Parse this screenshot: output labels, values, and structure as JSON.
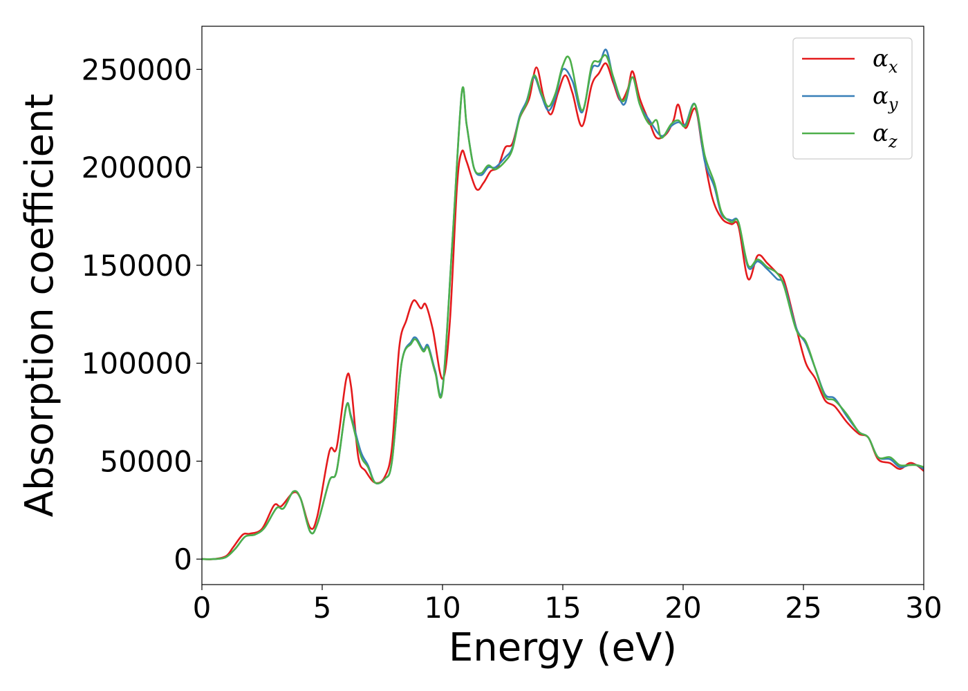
{
  "chart_data": {
    "type": "line",
    "xlabel": "Energy (eV)",
    "ylabel": "Absorption coefficient",
    "xlim": [
      0,
      30
    ],
    "ylim": [
      -13000,
      272000
    ],
    "x_ticks": [
      0,
      5,
      10,
      15,
      20,
      25,
      30
    ],
    "y_ticks": [
      0,
      50000,
      100000,
      150000,
      200000,
      250000
    ],
    "grid": false,
    "legend_position": "top-right",
    "series": [
      {
        "name": "α",
        "subscript": "x",
        "color": "#e41a1c",
        "points": [
          [
            0,
            0
          ],
          [
            0.5,
            0
          ],
          [
            1,
            1500
          ],
          [
            1.3,
            6000
          ],
          [
            1.7,
            12500
          ],
          [
            2,
            13000
          ],
          [
            2.5,
            15500
          ],
          [
            3,
            27500
          ],
          [
            3.3,
            27000
          ],
          [
            3.8,
            34000
          ],
          [
            4.1,
            31000
          ],
          [
            4.5,
            16000
          ],
          [
            4.8,
            22000
          ],
          [
            5.3,
            55000
          ],
          [
            5.6,
            57000
          ],
          [
            6,
            92000
          ],
          [
            6.2,
            88000
          ],
          [
            6.5,
            52000
          ],
          [
            6.8,
            45000
          ],
          [
            7.2,
            39000
          ],
          [
            7.6,
            42000
          ],
          [
            7.9,
            57000
          ],
          [
            8.2,
            108000
          ],
          [
            8.5,
            122000
          ],
          [
            8.8,
            132000
          ],
          [
            9.1,
            128000
          ],
          [
            9.3,
            130000
          ],
          [
            9.6,
            117000
          ],
          [
            10,
            92000
          ],
          [
            10.3,
            120000
          ],
          [
            10.6,
            190000
          ],
          [
            10.8,
            208000
          ],
          [
            11,
            203000
          ],
          [
            11.4,
            189000
          ],
          [
            11.7,
            192000
          ],
          [
            12,
            198000
          ],
          [
            12.3,
            200000
          ],
          [
            12.6,
            210000
          ],
          [
            12.9,
            212000
          ],
          [
            13.2,
            225000
          ],
          [
            13.6,
            235000
          ],
          [
            13.9,
            251000
          ],
          [
            14.2,
            236000
          ],
          [
            14.5,
            227000
          ],
          [
            14.8,
            238000
          ],
          [
            15.1,
            247000
          ],
          [
            15.4,
            238000
          ],
          [
            15.8,
            221000
          ],
          [
            16.2,
            242000
          ],
          [
            16.5,
            248000
          ],
          [
            16.8,
            253000
          ],
          [
            17.1,
            243000
          ],
          [
            17.4,
            234000
          ],
          [
            17.7,
            240000
          ],
          [
            17.9,
            249000
          ],
          [
            18.2,
            235000
          ],
          [
            18.6,
            223000
          ],
          [
            18.9,
            215000
          ],
          [
            19.3,
            217000
          ],
          [
            19.6,
            224000
          ],
          [
            19.8,
            232000
          ],
          [
            20.1,
            220000
          ],
          [
            20.5,
            230000
          ],
          [
            20.8,
            210000
          ],
          [
            21.2,
            185000
          ],
          [
            21.6,
            174000
          ],
          [
            22,
            171000
          ],
          [
            22.3,
            170000
          ],
          [
            22.7,
            143000
          ],
          [
            23.1,
            155000
          ],
          [
            23.5,
            151000
          ],
          [
            23.9,
            146000
          ],
          [
            24.2,
            142000
          ],
          [
            24.7,
            118000
          ],
          [
            25.1,
            100000
          ],
          [
            25.5,
            92000
          ],
          [
            25.9,
            81000
          ],
          [
            26.3,
            78000
          ],
          [
            26.8,
            70000
          ],
          [
            27.3,
            64000
          ],
          [
            27.7,
            62000
          ],
          [
            28.1,
            51000
          ],
          [
            28.6,
            49000
          ],
          [
            29,
            46000
          ],
          [
            29.4,
            49000
          ],
          [
            29.7,
            48000
          ],
          [
            30,
            45000
          ]
        ]
      },
      {
        "name": "α",
        "subscript": "y",
        "color": "#377eb8",
        "points": [
          [
            0,
            0
          ],
          [
            0.5,
            0
          ],
          [
            1,
            1000
          ],
          [
            1.4,
            5500
          ],
          [
            1.8,
            11500
          ],
          [
            2.2,
            12500
          ],
          [
            2.6,
            16000
          ],
          [
            3.1,
            26000
          ],
          [
            3.4,
            26000
          ],
          [
            3.8,
            34500
          ],
          [
            4.1,
            31000
          ],
          [
            4.5,
            14000
          ],
          [
            4.8,
            18000
          ],
          [
            5.3,
            40000
          ],
          [
            5.6,
            45000
          ],
          [
            6,
            78000
          ],
          [
            6.2,
            73000
          ],
          [
            6.6,
            55000
          ],
          [
            6.9,
            48000
          ],
          [
            7.2,
            39000
          ],
          [
            7.6,
            41000
          ],
          [
            7.9,
            50000
          ],
          [
            8.3,
            100000
          ],
          [
            8.7,
            111000
          ],
          [
            8.9,
            113000
          ],
          [
            9.2,
            107000
          ],
          [
            9.4,
            109000
          ],
          [
            9.7,
            96000
          ],
          [
            10,
            87000
          ],
          [
            10.4,
            160000
          ],
          [
            10.8,
            238000
          ],
          [
            11,
            222000
          ],
          [
            11.3,
            200000
          ],
          [
            11.6,
            196000
          ],
          [
            11.9,
            200000
          ],
          [
            12.2,
            200000
          ],
          [
            12.6,
            205000
          ],
          [
            12.9,
            210000
          ],
          [
            13.2,
            226000
          ],
          [
            13.5,
            234000
          ],
          [
            13.8,
            246000
          ],
          [
            14.1,
            237000
          ],
          [
            14.4,
            229000
          ],
          [
            14.7,
            236000
          ],
          [
            15,
            250000
          ],
          [
            15.4,
            244000
          ],
          [
            15.8,
            228000
          ],
          [
            16.2,
            250000
          ],
          [
            16.5,
            252000
          ],
          [
            16.8,
            260000
          ],
          [
            17.1,
            245000
          ],
          [
            17.4,
            234000
          ],
          [
            17.6,
            233000
          ],
          [
            17.9,
            246000
          ],
          [
            18.2,
            232000
          ],
          [
            18.6,
            224000
          ],
          [
            19.1,
            216000
          ],
          [
            19.5,
            221000
          ],
          [
            19.8,
            223000
          ],
          [
            20.1,
            222000
          ],
          [
            20.5,
            232000
          ],
          [
            20.9,
            203000
          ],
          [
            21.3,
            190000
          ],
          [
            21.6,
            176000
          ],
          [
            22,
            173000
          ],
          [
            22.3,
            172000
          ],
          [
            22.7,
            149000
          ],
          [
            23.1,
            152000
          ],
          [
            23.5,
            148000
          ],
          [
            23.9,
            143000
          ],
          [
            24.2,
            140000
          ],
          [
            24.7,
            118000
          ],
          [
            25.1,
            110000
          ],
          [
            25.5,
            97000
          ],
          [
            25.9,
            84000
          ],
          [
            26.3,
            82000
          ],
          [
            26.8,
            73000
          ],
          [
            27.3,
            65000
          ],
          [
            27.7,
            62000
          ],
          [
            28.1,
            52000
          ],
          [
            28.6,
            51000
          ],
          [
            29,
            47000
          ],
          [
            29.4,
            48000
          ],
          [
            29.7,
            48000
          ],
          [
            30,
            46000
          ]
        ]
      },
      {
        "name": "α",
        "subscript": "z",
        "color": "#4daf4a",
        "points": [
          [
            0,
            0
          ],
          [
            0.5,
            0
          ],
          [
            1,
            1000
          ],
          [
            1.4,
            5500
          ],
          [
            1.8,
            11500
          ],
          [
            2.2,
            12500
          ],
          [
            2.6,
            16000
          ],
          [
            3.1,
            26000
          ],
          [
            3.4,
            26000
          ],
          [
            3.8,
            34500
          ],
          [
            4.1,
            31000
          ],
          [
            4.5,
            14000
          ],
          [
            4.8,
            18000
          ],
          [
            5.3,
            40000
          ],
          [
            5.6,
            45000
          ],
          [
            6,
            78000
          ],
          [
            6.2,
            72000
          ],
          [
            6.6,
            53000
          ],
          [
            6.9,
            47000
          ],
          [
            7.2,
            39000
          ],
          [
            7.6,
            41000
          ],
          [
            7.9,
            50000
          ],
          [
            8.3,
            100000
          ],
          [
            8.7,
            110000
          ],
          [
            8.9,
            112000
          ],
          [
            9.2,
            106000
          ],
          [
            9.4,
            108000
          ],
          [
            9.7,
            95000
          ],
          [
            10,
            86000
          ],
          [
            10.4,
            160000
          ],
          [
            10.8,
            238000
          ],
          [
            11,
            222000
          ],
          [
            11.3,
            200000
          ],
          [
            11.6,
            197000
          ],
          [
            11.9,
            201000
          ],
          [
            12.2,
            199000
          ],
          [
            12.6,
            203000
          ],
          [
            12.9,
            209000
          ],
          [
            13.2,
            225000
          ],
          [
            13.5,
            233000
          ],
          [
            13.8,
            247000
          ],
          [
            14.1,
            238000
          ],
          [
            14.4,
            231000
          ],
          [
            14.7,
            238000
          ],
          [
            15,
            252000
          ],
          [
            15.3,
            255000
          ],
          [
            15.8,
            229000
          ],
          [
            16.2,
            252000
          ],
          [
            16.5,
            254000
          ],
          [
            16.8,
            257000
          ],
          [
            17.1,
            246000
          ],
          [
            17.4,
            235000
          ],
          [
            17.6,
            235000
          ],
          [
            17.9,
            246000
          ],
          [
            18.2,
            232000
          ],
          [
            18.6,
            222000
          ],
          [
            18.9,
            224000
          ],
          [
            19.1,
            215000
          ],
          [
            19.5,
            222000
          ],
          [
            19.8,
            224000
          ],
          [
            20.1,
            221000
          ],
          [
            20.5,
            232000
          ],
          [
            20.9,
            206000
          ],
          [
            21.3,
            192000
          ],
          [
            21.6,
            177000
          ],
          [
            22,
            172000
          ],
          [
            22.3,
            172000
          ],
          [
            22.7,
            150000
          ],
          [
            23.1,
            153000
          ],
          [
            23.5,
            149000
          ],
          [
            23.9,
            146000
          ],
          [
            24.2,
            139000
          ],
          [
            24.7,
            117000
          ],
          [
            25.1,
            111000
          ],
          [
            25.5,
            97000
          ],
          [
            25.9,
            83000
          ],
          [
            26.3,
            81000
          ],
          [
            26.8,
            74000
          ],
          [
            27.3,
            65000
          ],
          [
            27.7,
            62000
          ],
          [
            28.1,
            52000
          ],
          [
            28.6,
            52000
          ],
          [
            29,
            48000
          ],
          [
            29.4,
            48000
          ],
          [
            29.7,
            48000
          ],
          [
            30,
            47000
          ]
        ]
      }
    ]
  }
}
